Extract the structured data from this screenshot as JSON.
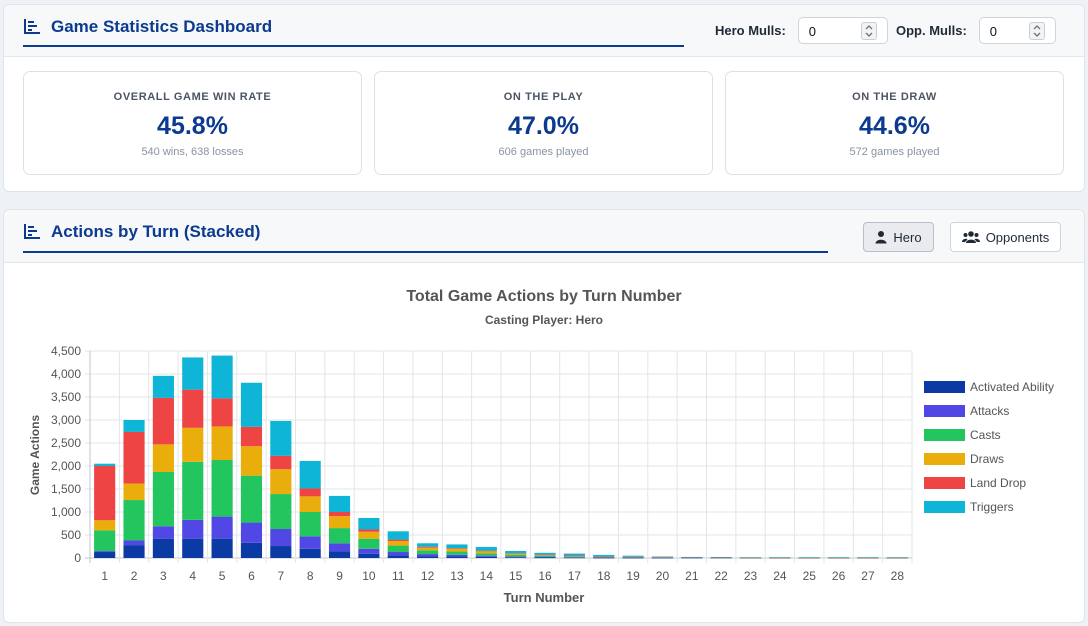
{
  "dashboard": {
    "title": "Game Statistics Dashboard",
    "hero_mulls_label": "Hero Mulls:",
    "hero_mulls_value": "0",
    "opp_mulls_label": "Opp. Mulls:",
    "opp_mulls_value": "0",
    "stats": [
      {
        "label": "OVERALL GAME WIN RATE",
        "value": "45.8%",
        "sub": "540 wins, 638 losses"
      },
      {
        "label": "ON THE PLAY",
        "value": "47.0%",
        "sub": "606 games played"
      },
      {
        "label": "ON THE DRAW",
        "value": "44.6%",
        "sub": "572 games played"
      }
    ]
  },
  "actions_panel": {
    "title": "Actions by Turn (Stacked)",
    "hero_button": "Hero",
    "opponents_button": "Opponents",
    "active_button": "Hero"
  },
  "icons": {
    "header": "chart-bar-icon",
    "hero": "user-icon",
    "opponents": "users-icon"
  },
  "colors": {
    "accent": "#0b3a8f"
  },
  "chart_data": {
    "type": "bar",
    "stacked": true,
    "title": "Total Game Actions by Turn Number",
    "subtitle": "Casting Player: Hero",
    "xlabel": "Turn Number",
    "ylabel": "Game Actions",
    "ylim": [
      0,
      4500
    ],
    "yticks": [
      0,
      500,
      1000,
      1500,
      2000,
      2500,
      3000,
      3500,
      4000,
      4500
    ],
    "ytick_labels": [
      "0",
      "500",
      "1,000",
      "1,500",
      "2,000",
      "2,500",
      "3,000",
      "3,500",
      "4,000",
      "4,500"
    ],
    "grid": true,
    "legend_position": "right",
    "categories": [
      "1",
      "2",
      "3",
      "4",
      "5",
      "6",
      "7",
      "8",
      "9",
      "10",
      "11",
      "12",
      "13",
      "14",
      "15",
      "16",
      "17",
      "18",
      "19",
      "20",
      "21",
      "22",
      "23",
      "24",
      "25",
      "26",
      "27",
      "28"
    ],
    "series": [
      {
        "name": "Activated Ability",
        "color": "#0b3aa4",
        "values": [
          130,
          280,
          420,
          420,
          420,
          330,
          260,
          200,
          140,
          90,
          60,
          40,
          35,
          25,
          15,
          10,
          8,
          5,
          4,
          3,
          2,
          2,
          1,
          1,
          1,
          1,
          1,
          1
        ]
      },
      {
        "name": "Attacks",
        "color": "#5047e5",
        "values": [
          20,
          100,
          270,
          410,
          480,
          440,
          370,
          270,
          180,
          110,
          70,
          45,
          35,
          25,
          15,
          12,
          10,
          6,
          4,
          3,
          2,
          2,
          1,
          1,
          1,
          1,
          1,
          1
        ]
      },
      {
        "name": "Casts",
        "color": "#22c55e",
        "values": [
          450,
          880,
          1180,
          1260,
          1230,
          1020,
          760,
          530,
          330,
          220,
          140,
          80,
          70,
          50,
          35,
          25,
          18,
          12,
          8,
          6,
          5,
          4,
          3,
          3,
          3,
          3,
          3,
          3
        ]
      },
      {
        "name": "Draws",
        "color": "#eaae0c",
        "values": [
          220,
          360,
          600,
          740,
          730,
          640,
          540,
          340,
          260,
          150,
          100,
          60,
          60,
          50,
          30,
          20,
          15,
          10,
          6,
          4,
          3,
          3,
          2,
          2,
          2,
          2,
          2,
          2
        ]
      },
      {
        "name": "Land Drop",
        "color": "#ef4444",
        "values": [
          1180,
          1120,
          1010,
          830,
          610,
          420,
          290,
          170,
          90,
          50,
          30,
          20,
          15,
          10,
          8,
          6,
          5,
          4,
          3,
          2,
          1,
          1,
          1,
          1,
          1,
          1,
          1,
          1
        ]
      },
      {
        "name": "Triggers",
        "color": "#0fb5d6",
        "values": [
          50,
          260,
          480,
          700,
          930,
          960,
          760,
          600,
          350,
          250,
          180,
          75,
          80,
          80,
          50,
          40,
          40,
          30,
          25,
          15,
          10,
          10,
          10,
          10,
          10,
          10,
          10,
          10
        ]
      }
    ]
  }
}
